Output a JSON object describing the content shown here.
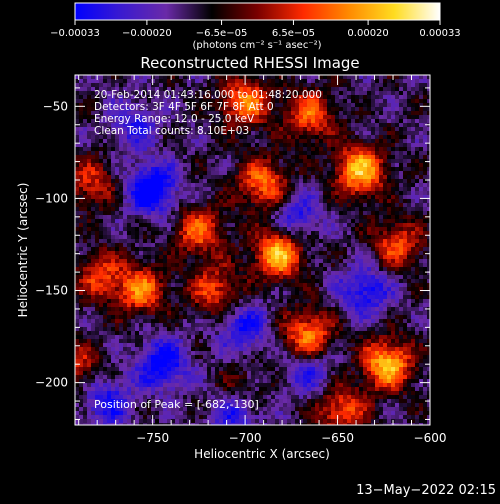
{
  "chart_data": {
    "type": "heatmap",
    "title": "Reconstructed RHESSI Image",
    "xlabel": "Heliocentric X (arcsec)",
    "ylabel": "Heliocentric Y (arcsec)",
    "xlim": [
      -792,
      -600
    ],
    "ylim": [
      -223,
      -33
    ],
    "x_ticks": [
      -750,
      -700,
      -650,
      -600
    ],
    "x_tick_labels": [
      "−750",
      "−700",
      "−650",
      "−600"
    ],
    "y_ticks": [
      -50,
      -100,
      -150,
      -200
    ],
    "y_tick_labels": [
      "−50",
      "−100",
      "−150",
      "−200"
    ],
    "grid": false,
    "colorbar": {
      "orientation": "horizontal",
      "placement": "top",
      "range": [
        -0.00033,
        0.00033
      ],
      "tick_labels": [
        "−0.00033",
        "−0.00020",
        "−6.5e−05",
        "6.5e−05",
        "0.00020",
        "0.00033"
      ],
      "tick_values": [
        -0.00033,
        -0.0002,
        -6.5e-05,
        6.5e-05,
        0.0002,
        0.00033
      ],
      "units_label": "(photons cm⁻² s⁻¹ asec⁻²)",
      "colormap": [
        "#0000ff",
        "#3a1ad0",
        "#6a2aa8",
        "#000000",
        "#7a0000",
        "#ff2a00",
        "#ff8a00",
        "#ffdc20",
        "#ffffff"
      ]
    },
    "annotations": [
      "20-Feb-2014 01:43:16.000 to 01:48:20.000",
      "Detectors: 3F 4F 5F 6F 7F 8F  Att 0",
      "Energy Range: 12.0 - 25.0 keV",
      "Clean      Total counts: 8.10E+03"
    ],
    "peak_label": "Position of Peak = [-682,-130]",
    "peak": {
      "x": -682,
      "y": -130
    },
    "hotspots": [
      {
        "x": -700,
        "y": -48,
        "v": 0.00026
      },
      {
        "x": -665,
        "y": -55,
        "v": 0.00022
      },
      {
        "x": -638,
        "y": -85,
        "v": 0.00033
      },
      {
        "x": -690,
        "y": -92,
        "v": 0.00025
      },
      {
        "x": -682,
        "y": -130,
        "v": 0.00033
      },
      {
        "x": -725,
        "y": -118,
        "v": 0.00022
      },
      {
        "x": -756,
        "y": -150,
        "v": 0.00024
      },
      {
        "x": -716,
        "y": -150,
        "v": 0.0002
      },
      {
        "x": -778,
        "y": -142,
        "v": 0.00018
      },
      {
        "x": -666,
        "y": -174,
        "v": 0.00026
      },
      {
        "x": -623,
        "y": -190,
        "v": 0.00033
      },
      {
        "x": -618,
        "y": -125,
        "v": 0.0002
      },
      {
        "x": -783,
        "y": -92,
        "v": 0.00016
      },
      {
        "x": -790,
        "y": -192,
        "v": 0.00015
      },
      {
        "x": -648,
        "y": -215,
        "v": 0.00022
      },
      {
        "x": -703,
        "y": -205,
        "v": 0.00012
      }
    ],
    "coldspots": [
      {
        "x": -750,
        "y": -95,
        "v": -0.0003
      },
      {
        "x": -745,
        "y": -190,
        "v": -0.00026
      },
      {
        "x": -635,
        "y": -150,
        "v": -0.00022
      },
      {
        "x": -700,
        "y": -170,
        "v": -0.0002
      },
      {
        "x": -705,
        "y": -215,
        "v": -0.00022
      },
      {
        "x": -672,
        "y": -110,
        "v": -0.00018
      },
      {
        "x": -760,
        "y": -60,
        "v": -0.00016
      },
      {
        "x": -775,
        "y": -210,
        "v": -0.0002
      },
      {
        "x": -665,
        "y": -195,
        "v": -0.00016
      }
    ],
    "baseline": -0.00012
  },
  "footer": {
    "timestamp": "13−May−2022 02:15"
  }
}
